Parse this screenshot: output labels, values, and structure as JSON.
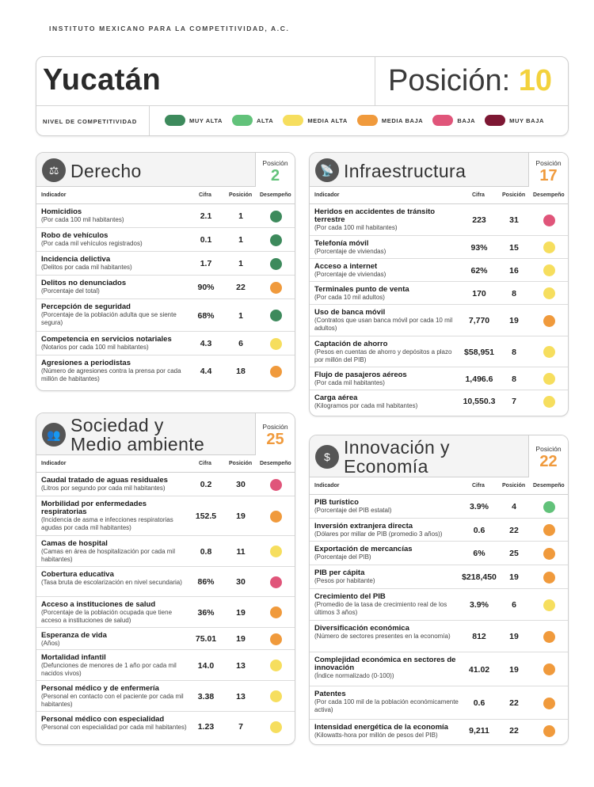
{
  "org": "INSTITUTO MEXICANO PARA LA COMPETITIVIDAD, A.C.",
  "state": "Yucatán",
  "position_label": "Posición:",
  "position_value": "10",
  "nivel_label": "NIVEL DE COMPETITIVIDAD",
  "colors": {
    "muy_alta": "#3d8a5c",
    "alta": "#62c27a",
    "media_alta": "#f6de5e",
    "media_baja": "#f09a3c",
    "baja": "#e0557a",
    "muy_baja": "#7d1733"
  },
  "legend": [
    {
      "label": "MUY ALTA",
      "color": "#3d8a5c"
    },
    {
      "label": "ALTA",
      "color": "#62c27a"
    },
    {
      "label": "MEDIA ALTA",
      "color": "#f6de5e"
    },
    {
      "label": "MEDIA BAJA",
      "color": "#f09a3c"
    },
    {
      "label": "BAJA",
      "color": "#e0557a"
    },
    {
      "label": "MUY BAJA",
      "color": "#7d1733"
    }
  ],
  "table_headers": {
    "indicador": "Indicador",
    "cifra": "Cifra",
    "posicion": "Posición",
    "desempeno": "Desempeño"
  },
  "sections": {
    "derecho": {
      "title": "Derecho",
      "icon": "scales-icon",
      "pos_label": "Posición",
      "pos_value": "2",
      "pos_color": "#62c27a",
      "rows": [
        {
          "name": "Homicidios",
          "desc": "(Por cada 100 mil habitantes)",
          "value": "2.1",
          "pos": "1",
          "level": "muy_alta"
        },
        {
          "name": "Robo de vehículos",
          "desc": "(Por cada mil vehículos registrados)",
          "value": "0.1",
          "pos": "1",
          "level": "muy_alta"
        },
        {
          "name": "Incidencia delictiva",
          "desc": "(Delitos por cada mil habitantes)",
          "value": "1.7",
          "pos": "1",
          "level": "muy_alta"
        },
        {
          "name": "Delitos no denunciados",
          "desc": "(Porcentaje del total)",
          "value": "90%",
          "pos": "22",
          "level": "media_baja"
        },
        {
          "name": "Percepción de seguridad",
          "desc": "(Porcentaje de la población adulta que se siente segura)",
          "value": "68%",
          "pos": "1",
          "level": "muy_alta"
        },
        {
          "name": "Competencia en servicios notariales",
          "desc": "(Notarios por cada 100 mil habitantes)",
          "value": "4.3",
          "pos": "6",
          "level": "media_alta"
        },
        {
          "name": "Agresiones a periodistas",
          "desc": "(Número de agresiones contra la prensa por cada millón de habitantes)",
          "value": "4.4",
          "pos": "18",
          "level": "media_baja"
        }
      ]
    },
    "infraestructura": {
      "title": "Infraestructura",
      "icon": "antenna-icon",
      "pos_label": "Posición",
      "pos_value": "17",
      "pos_color": "#f09a3c",
      "rows": [
        {
          "name": "Heridos en accidentes de tránsito terrestre",
          "desc": "(Por cada 100 mil habitantes)",
          "value": "223",
          "pos": "31",
          "level": "baja"
        },
        {
          "name": "Telefonía móvil",
          "desc": "(Porcentaje de viviendas)",
          "value": "93%",
          "pos": "15",
          "level": "media_alta"
        },
        {
          "name": "Acceso a internet",
          "desc": "(Porcentaje de viviendas)",
          "value": "62%",
          "pos": "16",
          "level": "media_alta"
        },
        {
          "name": "Terminales punto de venta",
          "desc": "(Por cada 10 mil adultos)",
          "value": "170",
          "pos": "8",
          "level": "media_alta"
        },
        {
          "name": "Uso de banca móvil",
          "desc": "(Contratos que usan banca móvil por cada 10 mil adultos)",
          "value": "7,770",
          "pos": "19",
          "level": "media_baja"
        },
        {
          "name": "Captación de ahorro",
          "desc": "(Pesos en cuentas de ahorro y depósitos a plazo por millón del PIB)",
          "value": "$58,951",
          "pos": "8",
          "level": "media_alta"
        },
        {
          "name": "Flujo de pasajeros aéreos",
          "desc": "(Por cada mil habitantes)",
          "value": "1,496.6",
          "pos": "8",
          "level": "media_alta"
        },
        {
          "name": "Carga aérea",
          "desc": "(Kilogramos por cada mil habitantes)",
          "value": "10,550.3",
          "pos": "7",
          "level": "media_alta"
        }
      ]
    },
    "sociedad": {
      "title_line1": "Sociedad y",
      "title_line2": "Medio ambiente",
      "icon": "people-icon",
      "pos_label": "Posición",
      "pos_value": "25",
      "pos_color": "#f09a3c",
      "rows": [
        {
          "name": "Caudal tratado de aguas residuales",
          "desc": "(Litros por segundo por cada mil habitantes)",
          "value": "0.2",
          "pos": "30",
          "level": "baja"
        },
        {
          "name": "Morbilidad por enfermedades respiratorias",
          "desc": "(Incidencia de asma e infecciones respiratorias agudas por cada mil habitantes)",
          "value": "152.5",
          "pos": "19",
          "level": "media_baja"
        },
        {
          "name": "Camas de hospital",
          "desc": "(Camas en área de hospitalización por cada mil habitantes)",
          "value": "0.8",
          "pos": "11",
          "level": "media_alta"
        },
        {
          "name": "Cobertura educativa",
          "desc": "(Tasa bruta de escolarización en nivel secundaria)",
          "value": "86%",
          "pos": "30",
          "level": "baja"
        },
        {
          "name": "Acceso a instituciones de salud",
          "desc": "(Porcentaje de la población ocupada que tiene acceso a instituciones de salud)",
          "value": "36%",
          "pos": "19",
          "level": "media_baja"
        },
        {
          "name": "Esperanza de vida",
          "desc": "(Años)",
          "value": "75.01",
          "pos": "19",
          "level": "media_baja"
        },
        {
          "name": "Mortalidad infantil",
          "desc": "(Defunciones de menores de 1 año por cada mil nacidos vivos)",
          "value": "14.0",
          "pos": "13",
          "level": "media_alta"
        },
        {
          "name": "Personal médico y de enfermería",
          "desc": "(Personal en contacto con el paciente por cada mil habitantes)",
          "value": "3.38",
          "pos": "13",
          "level": "media_alta"
        },
        {
          "name": "Personal médico con especialidad",
          "desc": "(Personal con especialidad por cada mil habitantes)",
          "value": "1.23",
          "pos": "7",
          "level": "media_alta"
        }
      ]
    },
    "innovacion": {
      "title_line1": "Innovación y",
      "title_line2": "Economía",
      "icon": "money-icon",
      "pos_label": "Posición",
      "pos_value": "22",
      "pos_color": "#f09a3c",
      "rows": [
        {
          "name": "PIB turístico",
          "desc": "(Porcentaje del PIB estatal)",
          "value": "3.9%",
          "pos": "4",
          "level": "alta"
        },
        {
          "name": "Inversión extranjera directa",
          "desc": "(Dólares por millar de PIB (promedio 3 años))",
          "value": "0.6",
          "pos": "22",
          "level": "media_baja"
        },
        {
          "name": "Exportación de mercancías",
          "desc": "(Porcentaje del PIB)",
          "value": "6%",
          "pos": "25",
          "level": "media_baja"
        },
        {
          "name": "PIB per cápita",
          "desc": "(Pesos por habitante)",
          "value": "$218,450",
          "pos": "19",
          "level": "media_baja"
        },
        {
          "name": "Crecimiento del PIB",
          "desc": "(Promedio de la tasa de crecimiento real de los últimos 3 años)",
          "value": "3.9%",
          "pos": "6",
          "level": "media_alta"
        },
        {
          "name": "Diversificación económica",
          "desc": "(Número de sectores presentes en la economía)",
          "value": "812",
          "pos": "19",
          "level": "media_baja"
        },
        {
          "name": "Complejidad económica en sectores de innovación",
          "desc": "(Índice normalizado (0-100))",
          "value": "41.02",
          "pos": "19",
          "level": "media_baja"
        },
        {
          "name": "Patentes",
          "desc": "(Por cada 100 mil de la población económicamente activa)",
          "value": "0.6",
          "pos": "22",
          "level": "media_baja"
        },
        {
          "name": "Intensidad energética de la economía",
          "desc": "(Kilowatts-hora por millón de pesos del PIB)",
          "value": "9,211",
          "pos": "22",
          "level": "media_baja"
        }
      ]
    }
  }
}
